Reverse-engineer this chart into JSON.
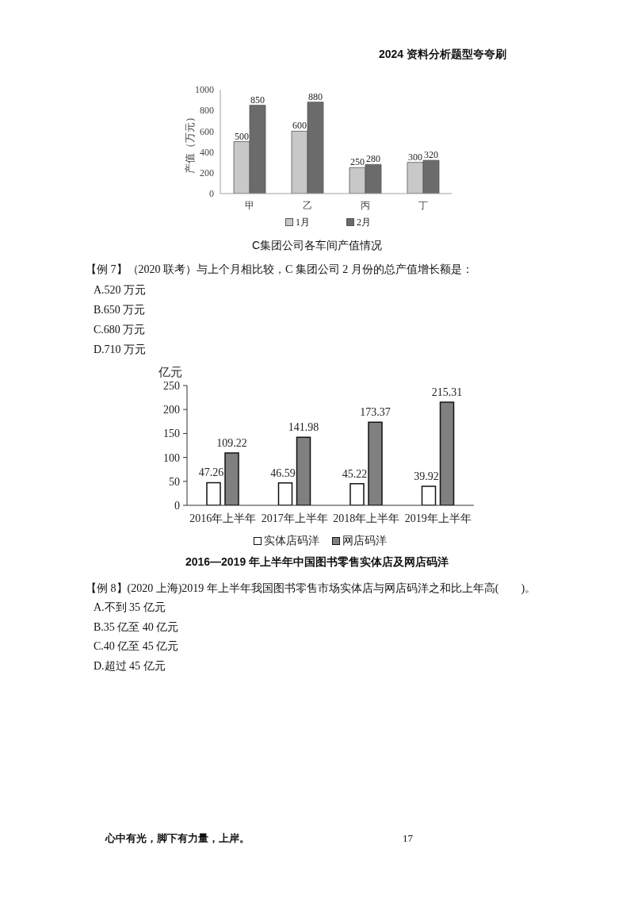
{
  "chart_data": [
    {
      "type": "bar",
      "title": "C集团公司各车间产值情况",
      "ylabel": "产值（万元）",
      "categories": [
        "甲",
        "乙",
        "丙",
        "丁"
      ],
      "series": [
        {
          "name": "1月",
          "color": "#c8c8c8",
          "values": [
            500,
            600,
            250,
            300
          ]
        },
        {
          "name": "2月",
          "color": "#6b6b6b",
          "values": [
            850,
            880,
            280,
            320
          ]
        }
      ],
      "ylim": [
        0,
        1000
      ],
      "yticks": [
        0,
        200,
        400,
        600,
        800,
        1000
      ],
      "data_labels": true,
      "legend": "bottom",
      "annotations": [
        "2024 资料分析题型夸夸刷",
        "【例 7】（2020 联考）与上个月相比较，C 集团公司 2 月份的总产值增长额是：",
        "A.520 万元",
        "B.650 万元",
        "C.680 万元",
        "D.710 万元"
      ]
    },
    {
      "type": "bar",
      "title": "2016—2019 年上半年中国图书零售实体店及网店码洋",
      "ylabel": "亿元",
      "categories": [
        "2016年上半年",
        "2017年上半年",
        "2018年上半年",
        "2019年上半年"
      ],
      "series": [
        {
          "name": "实体店码洋",
          "color": "#ffffff",
          "values": [
            47.26,
            46.59,
            45.22,
            39.92
          ]
        },
        {
          "name": "网店码洋",
          "color": "#808080",
          "values": [
            109.22,
            141.98,
            173.37,
            215.31
          ]
        }
      ],
      "ylim": [
        0,
        250
      ],
      "yticks": [
        0,
        50,
        100,
        150,
        200,
        250
      ],
      "data_labels": true,
      "legend": "bottom",
      "annotations": [
        "【例 8】(2020 上海)2019 年上半年我国图书零售市场实体店与网店码洋之和比上年高(　　)。",
        "A.不到 35 亿元",
        "B.35 亿至 40 亿元",
        "C.40 亿至 45 亿元",
        "D.超过 45 亿元",
        "心中有光，脚下有力量，上岸。",
        "17"
      ]
    }
  ]
}
